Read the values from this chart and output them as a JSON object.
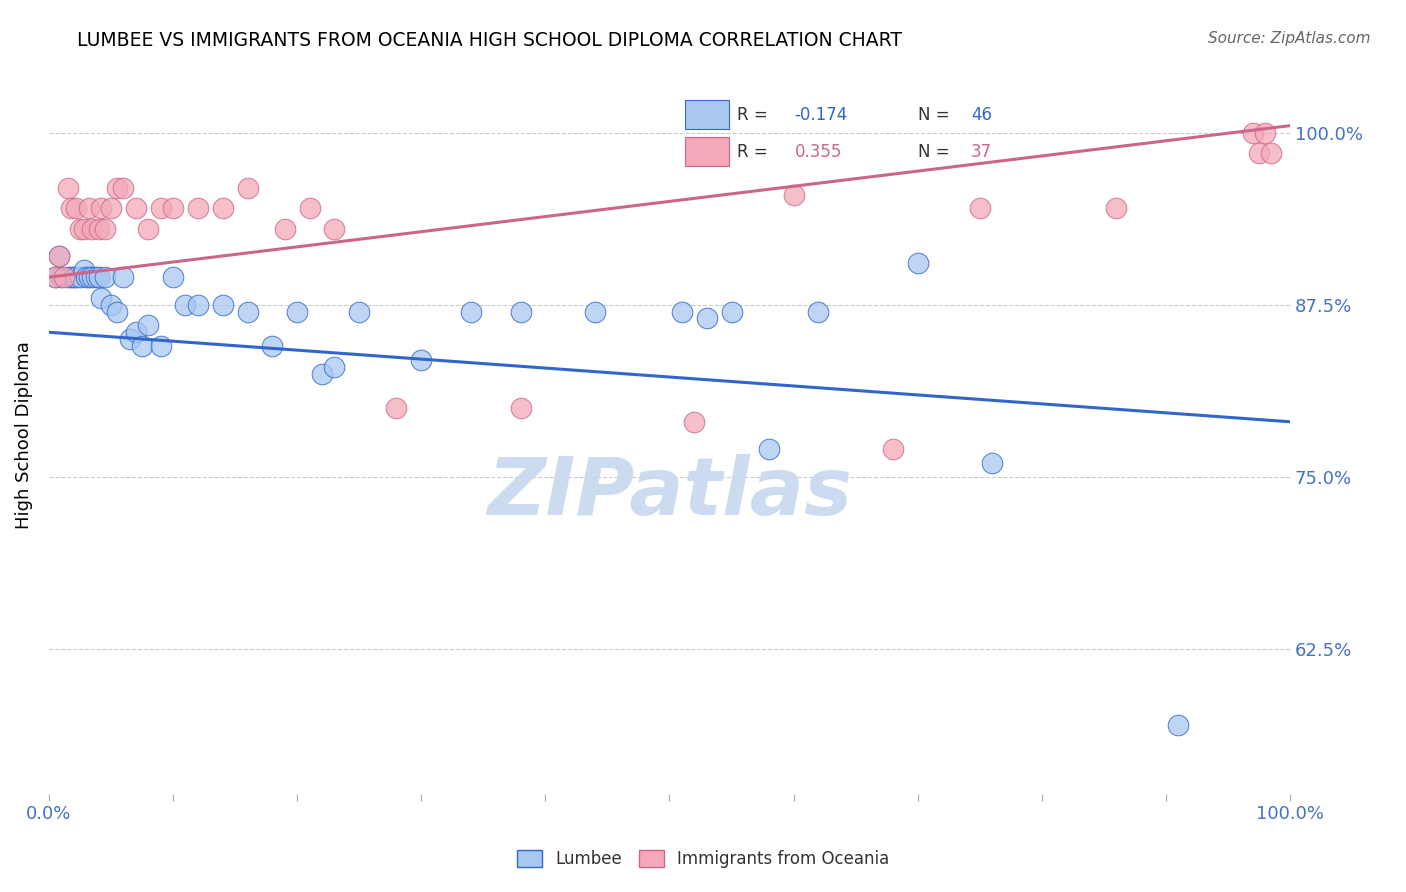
{
  "title": "LUMBEE VS IMMIGRANTS FROM OCEANIA HIGH SCHOOL DIPLOMA CORRELATION CHART",
  "source": "Source: ZipAtlas.com",
  "ylabel": "High School Diploma",
  "ytick_labels": [
    "100.0%",
    "87.5%",
    "75.0%",
    "62.5%"
  ],
  "ytick_values": [
    1.0,
    0.875,
    0.75,
    0.625
  ],
  "xlim": [
    0.0,
    1.0
  ],
  "ylim": [
    0.52,
    1.04
  ],
  "legend_blue_r": "R = -0.174",
  "legend_blue_n": "N = 46",
  "legend_pink_r": "R =  0.355",
  "legend_pink_n": "N = 37",
  "blue_color": "#A8C8F0",
  "pink_color": "#F4A8B8",
  "blue_line_color": "#3366CC",
  "pink_line_color": "#CC6688",
  "lumbee_x": [
    0.005,
    0.008,
    0.01,
    0.015,
    0.018,
    0.02,
    0.022,
    0.025,
    0.028,
    0.03,
    0.032,
    0.035,
    0.038,
    0.04,
    0.042,
    0.045,
    0.05,
    0.055,
    0.06,
    0.065,
    0.07,
    0.075,
    0.08,
    0.09,
    0.1,
    0.11,
    0.12,
    0.14,
    0.16,
    0.18,
    0.2,
    0.22,
    0.23,
    0.25,
    0.3,
    0.34,
    0.38,
    0.44,
    0.51,
    0.53,
    0.55,
    0.58,
    0.62,
    0.7,
    0.76,
    0.91
  ],
  "lumbee_y": [
    0.895,
    0.91,
    0.895,
    0.895,
    0.895,
    0.895,
    0.895,
    0.895,
    0.9,
    0.895,
    0.895,
    0.895,
    0.895,
    0.895,
    0.88,
    0.895,
    0.875,
    0.87,
    0.895,
    0.85,
    0.855,
    0.845,
    0.86,
    0.845,
    0.895,
    0.875,
    0.875,
    0.875,
    0.87,
    0.845,
    0.87,
    0.825,
    0.83,
    0.87,
    0.835,
    0.87,
    0.87,
    0.87,
    0.87,
    0.865,
    0.87,
    0.77,
    0.87,
    0.905,
    0.76,
    0.57
  ],
  "oceania_x": [
    0.005,
    0.008,
    0.012,
    0.015,
    0.018,
    0.022,
    0.025,
    0.028,
    0.032,
    0.035,
    0.04,
    0.042,
    0.045,
    0.05,
    0.055,
    0.06,
    0.07,
    0.08,
    0.09,
    0.1,
    0.12,
    0.14,
    0.16,
    0.19,
    0.21,
    0.23,
    0.28,
    0.38,
    0.52,
    0.6,
    0.68,
    0.75,
    0.86,
    0.97,
    0.975,
    0.98,
    0.985
  ],
  "oceania_y": [
    0.895,
    0.91,
    0.895,
    0.96,
    0.945,
    0.945,
    0.93,
    0.93,
    0.945,
    0.93,
    0.93,
    0.945,
    0.93,
    0.945,
    0.96,
    0.96,
    0.945,
    0.93,
    0.945,
    0.945,
    0.945,
    0.945,
    0.96,
    0.93,
    0.945,
    0.93,
    0.8,
    0.8,
    0.79,
    0.955,
    0.77,
    0.945,
    0.945,
    1.0,
    0.985,
    1.0,
    0.985
  ],
  "blue_trend_x": [
    0.0,
    1.0
  ],
  "blue_trend_y": [
    0.855,
    0.79
  ],
  "pink_trend_x": [
    0.0,
    1.0
  ],
  "pink_trend_y": [
    0.895,
    1.005
  ],
  "watermark": "ZIPatlas",
  "watermark_color": "#C8D8F0",
  "background_color": "#FFFFFF",
  "grid_color": "#CCCCCC",
  "tick_label_color": "#4472C4",
  "title_color": "#000000",
  "axis_label_color": "#000000"
}
